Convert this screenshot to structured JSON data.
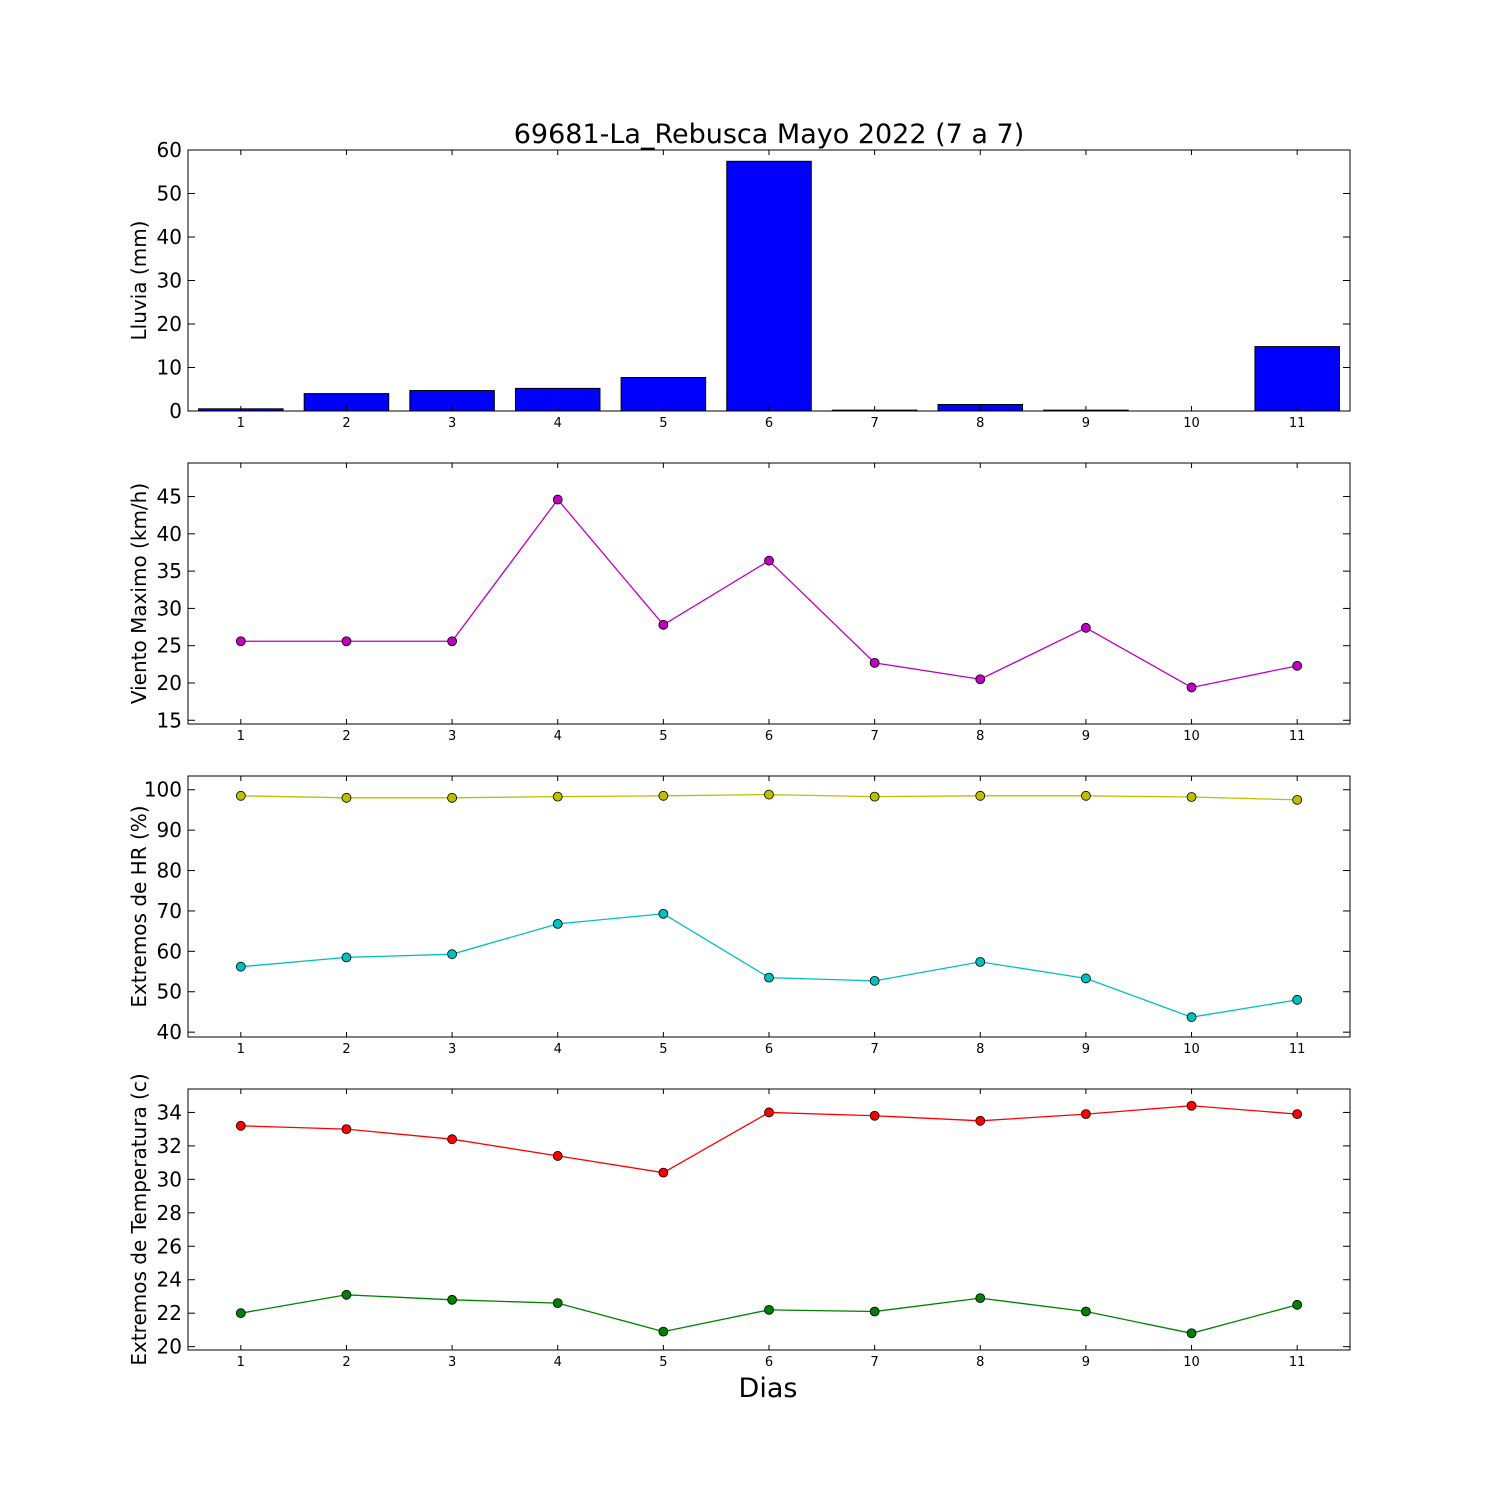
{
  "title": "69681-La_Rebusca Mayo 2022  (7 a 7)",
  "xlabel": "Dias",
  "chart_data": [
    {
      "type": "bar",
      "ylabel": "Lluvia (mm)",
      "categories": [
        "1",
        "2",
        "3",
        "4",
        "5",
        "6",
        "7",
        "8",
        "9",
        "10",
        "11"
      ],
      "ylim": [
        0,
        60
      ],
      "yticks": [
        0,
        10,
        20,
        30,
        40,
        50,
        60
      ],
      "series": [
        {
          "values": [
            0.5,
            4.0,
            4.7,
            5.2,
            7.7,
            57.4,
            0.2,
            1.5,
            0.2,
            0.0,
            14.8
          ],
          "color": "#0000ff"
        }
      ]
    },
    {
      "type": "line",
      "ylabel": "Viento Maximo (km/h)",
      "categories": [
        "1",
        "2",
        "3",
        "4",
        "5",
        "6",
        "7",
        "8",
        "9",
        "10",
        "11"
      ],
      "ylim": [
        14.5,
        49.5
      ],
      "yticks": [
        15,
        20,
        25,
        30,
        35,
        40,
        45
      ],
      "series": [
        {
          "values": [
            25.6,
            25.6,
            25.6,
            44.6,
            27.8,
            36.4,
            22.7,
            20.5,
            27.4,
            19.4,
            22.3
          ],
          "color": "#bf00bf"
        }
      ]
    },
    {
      "type": "line",
      "ylabel": "Extremos de HR (%)",
      "categories": [
        "1",
        "2",
        "3",
        "4",
        "5",
        "6",
        "7",
        "8",
        "9",
        "10",
        "11"
      ],
      "ylim": [
        38.8,
        103.4
      ],
      "yticks": [
        40,
        50,
        60,
        70,
        80,
        90,
        100
      ],
      "series": [
        {
          "values": [
            98.5,
            98.0,
            98.0,
            98.3,
            98.5,
            98.8,
            98.3,
            98.5,
            98.5,
            98.2,
            97.5
          ],
          "color": "#bfbf00"
        },
        {
          "values": [
            56.2,
            58.5,
            59.3,
            66.8,
            69.3,
            53.5,
            52.7,
            57.4,
            53.3,
            43.7,
            48.0
          ],
          "color": "#00bfbf"
        }
      ]
    },
    {
      "type": "line",
      "ylabel": "Extremos de Temperatura (c)",
      "categories": [
        "1",
        "2",
        "3",
        "4",
        "5",
        "6",
        "7",
        "8",
        "9",
        "10",
        "11"
      ],
      "ylim": [
        19.8,
        35.4
      ],
      "yticks": [
        20,
        22,
        24,
        26,
        28,
        30,
        32,
        34
      ],
      "series": [
        {
          "values": [
            33.2,
            33.0,
            32.4,
            31.4,
            30.4,
            34.0,
            33.8,
            33.5,
            33.9,
            34.4,
            33.9
          ],
          "color": "#ff0000"
        },
        {
          "values": [
            22.0,
            23.1,
            22.8,
            22.6,
            20.9,
            22.2,
            22.1,
            22.9,
            22.1,
            20.8,
            22.5
          ],
          "color": "#008000"
        }
      ]
    }
  ]
}
